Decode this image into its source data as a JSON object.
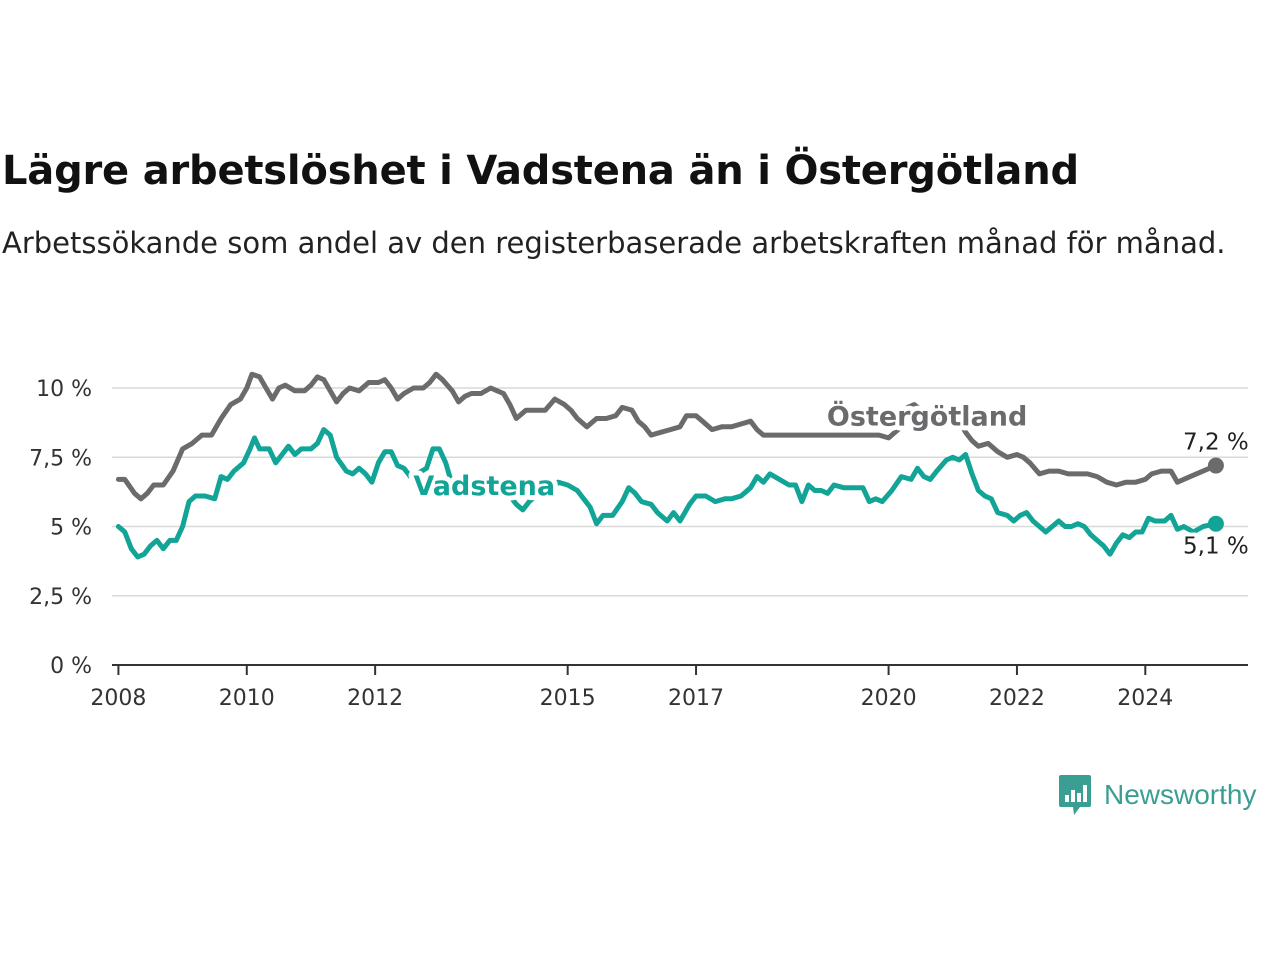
{
  "header": {
    "title": "Lägre arbetslöshet i Vadstena än i Östergötland",
    "subtitle": "Arbetssökande som andel av den registerbaserade arbetskraften månad för månad."
  },
  "brand": {
    "name": "Newsworthy",
    "icon": "newsworthy-logo-icon",
    "color": "#3a9e92"
  },
  "chart_data": {
    "type": "line",
    "xlabel": "",
    "ylabel": "",
    "ylim": [
      0,
      10.8
    ],
    "xlim": [
      2007.9,
      2025.6
    ],
    "y_ticks": [
      {
        "value": 0,
        "label": "0 %"
      },
      {
        "value": 2.5,
        "label": "2,5 %"
      },
      {
        "value": 5,
        "label": "5 %"
      },
      {
        "value": 7.5,
        "label": "7,5 %"
      },
      {
        "value": 10,
        "label": "10 %"
      }
    ],
    "x_ticks": [
      {
        "value": 2008,
        "label": "2008"
      },
      {
        "value": 2010,
        "label": "2010"
      },
      {
        "value": 2012,
        "label": "2012"
      },
      {
        "value": 2015,
        "label": "2015"
      },
      {
        "value": 2017,
        "label": "2017"
      },
      {
        "value": 2020,
        "label": "2020"
      },
      {
        "value": 2022,
        "label": "2022"
      },
      {
        "value": 2024,
        "label": "2024"
      }
    ],
    "grid": true,
    "series": [
      {
        "name": "Östergötland",
        "color": "#6b6b6e",
        "label_at": 2020.6,
        "end_label": "7,2 %",
        "points": [
          [
            2008.0,
            6.7
          ],
          [
            2008.1,
            6.7
          ],
          [
            2008.25,
            6.2
          ],
          [
            2008.35,
            6.0
          ],
          [
            2008.45,
            6.2
          ],
          [
            2008.55,
            6.5
          ],
          [
            2008.7,
            6.5
          ],
          [
            2008.85,
            7.0
          ],
          [
            2009.0,
            7.8
          ],
          [
            2009.15,
            8.0
          ],
          [
            2009.3,
            8.3
          ],
          [
            2009.45,
            8.3
          ],
          [
            2009.6,
            8.9
          ],
          [
            2009.75,
            9.4
          ],
          [
            2009.9,
            9.6
          ],
          [
            2010.0,
            10.0
          ],
          [
            2010.08,
            10.5
          ],
          [
            2010.2,
            10.4
          ],
          [
            2010.3,
            10.0
          ],
          [
            2010.4,
            9.6
          ],
          [
            2010.5,
            10.0
          ],
          [
            2010.6,
            10.1
          ],
          [
            2010.75,
            9.9
          ],
          [
            2010.9,
            9.9
          ],
          [
            2011.0,
            10.1
          ],
          [
            2011.1,
            10.4
          ],
          [
            2011.2,
            10.3
          ],
          [
            2011.3,
            9.9
          ],
          [
            2011.4,
            9.5
          ],
          [
            2011.5,
            9.8
          ],
          [
            2011.6,
            10.0
          ],
          [
            2011.75,
            9.9
          ],
          [
            2011.9,
            10.2
          ],
          [
            2012.05,
            10.2
          ],
          [
            2012.15,
            10.3
          ],
          [
            2012.25,
            10.0
          ],
          [
            2012.35,
            9.6
          ],
          [
            2012.45,
            9.8
          ],
          [
            2012.6,
            10.0
          ],
          [
            2012.75,
            10.0
          ],
          [
            2012.85,
            10.2
          ],
          [
            2012.95,
            10.5
          ],
          [
            2013.05,
            10.3
          ],
          [
            2013.2,
            9.9
          ],
          [
            2013.3,
            9.5
          ],
          [
            2013.4,
            9.7
          ],
          [
            2013.5,
            9.8
          ],
          [
            2013.65,
            9.8
          ],
          [
            2013.8,
            10.0
          ],
          [
            2013.9,
            9.9
          ],
          [
            2014.0,
            9.8
          ],
          [
            2014.1,
            9.4
          ],
          [
            2014.2,
            8.9
          ],
          [
            2014.35,
            9.2
          ],
          [
            2014.5,
            9.2
          ],
          [
            2014.65,
            9.2
          ],
          [
            2014.8,
            9.6
          ],
          [
            2014.95,
            9.4
          ],
          [
            2015.05,
            9.2
          ],
          [
            2015.15,
            8.9
          ],
          [
            2015.3,
            8.6
          ],
          [
            2015.45,
            8.9
          ],
          [
            2015.6,
            8.9
          ],
          [
            2015.75,
            9.0
          ],
          [
            2015.85,
            9.3
          ],
          [
            2016.0,
            9.2
          ],
          [
            2016.1,
            8.8
          ],
          [
            2016.2,
            8.6
          ],
          [
            2016.3,
            8.3
          ],
          [
            2016.45,
            8.4
          ],
          [
            2016.6,
            8.5
          ],
          [
            2016.75,
            8.6
          ],
          [
            2016.85,
            9.0
          ],
          [
            2017.0,
            9.0
          ],
          [
            2017.1,
            8.8
          ],
          [
            2017.25,
            8.5
          ],
          [
            2017.4,
            8.6
          ],
          [
            2017.55,
            8.6
          ],
          [
            2017.7,
            8.7
          ],
          [
            2017.85,
            8.8
          ],
          [
            2017.95,
            8.5
          ],
          [
            2018.05,
            8.3
          ],
          [
            2019.85,
            8.3
          ],
          [
            2020.0,
            8.2
          ],
          [
            2020.1,
            8.4
          ],
          [
            2020.2,
            8.6
          ],
          [
            2020.3,
            9.3
          ],
          [
            2020.4,
            9.4
          ],
          [
            2020.5,
            9.2
          ],
          [
            2020.6,
            9.0
          ],
          [
            2020.7,
            8.8
          ],
          [
            2020.85,
            8.8
          ],
          [
            2021.0,
            8.9
          ],
          [
            2021.1,
            8.8
          ],
          [
            2021.2,
            8.4
          ],
          [
            2021.3,
            8.1
          ],
          [
            2021.4,
            7.9
          ],
          [
            2021.55,
            8.0
          ],
          [
            2021.7,
            7.7
          ],
          [
            2021.85,
            7.5
          ],
          [
            2022.0,
            7.6
          ],
          [
            2022.1,
            7.5
          ],
          [
            2022.2,
            7.3
          ],
          [
            2022.35,
            6.9
          ],
          [
            2022.5,
            7.0
          ],
          [
            2022.65,
            7.0
          ],
          [
            2022.8,
            6.9
          ],
          [
            2022.95,
            6.9
          ],
          [
            2023.1,
            6.9
          ],
          [
            2023.25,
            6.8
          ],
          [
            2023.4,
            6.6
          ],
          [
            2023.55,
            6.5
          ],
          [
            2023.7,
            6.6
          ],
          [
            2023.85,
            6.6
          ],
          [
            2024.0,
            6.7
          ],
          [
            2024.1,
            6.9
          ],
          [
            2024.25,
            7.0
          ],
          [
            2024.4,
            7.0
          ],
          [
            2024.5,
            6.6
          ],
          [
            2024.7,
            6.8
          ],
          [
            2024.9,
            7.0
          ],
          [
            2025.1,
            7.2
          ]
        ]
      },
      {
        "name": "Vadstena",
        "color": "#12a496",
        "label_at": 2013.7,
        "end_label": "5,1 %",
        "points": [
          [
            2008.0,
            5.0
          ],
          [
            2008.1,
            4.8
          ],
          [
            2008.2,
            4.2
          ],
          [
            2008.3,
            3.9
          ],
          [
            2008.4,
            4.0
          ],
          [
            2008.5,
            4.3
          ],
          [
            2008.6,
            4.5
          ],
          [
            2008.7,
            4.2
          ],
          [
            2008.8,
            4.5
          ],
          [
            2008.9,
            4.5
          ],
          [
            2009.0,
            5.0
          ],
          [
            2009.1,
            5.9
          ],
          [
            2009.2,
            6.1
          ],
          [
            2009.35,
            6.1
          ],
          [
            2009.5,
            6.0
          ],
          [
            2009.6,
            6.8
          ],
          [
            2009.7,
            6.7
          ],
          [
            2009.8,
            7.0
          ],
          [
            2009.95,
            7.3
          ],
          [
            2010.05,
            7.8
          ],
          [
            2010.12,
            8.2
          ],
          [
            2010.2,
            7.8
          ],
          [
            2010.35,
            7.8
          ],
          [
            2010.45,
            7.3
          ],
          [
            2010.55,
            7.6
          ],
          [
            2010.65,
            7.9
          ],
          [
            2010.75,
            7.6
          ],
          [
            2010.85,
            7.8
          ],
          [
            2011.0,
            7.8
          ],
          [
            2011.1,
            8.0
          ],
          [
            2011.2,
            8.5
          ],
          [
            2011.3,
            8.3
          ],
          [
            2011.4,
            7.5
          ],
          [
            2011.55,
            7.0
          ],
          [
            2011.65,
            6.9
          ],
          [
            2011.75,
            7.1
          ],
          [
            2011.85,
            6.9
          ],
          [
            2011.95,
            6.6
          ],
          [
            2012.05,
            7.3
          ],
          [
            2012.15,
            7.7
          ],
          [
            2012.25,
            7.7
          ],
          [
            2012.35,
            7.2
          ],
          [
            2012.45,
            7.1
          ],
          [
            2012.55,
            6.8
          ],
          [
            2012.65,
            6.9
          ],
          [
            2012.8,
            7.1
          ],
          [
            2012.9,
            7.8
          ],
          [
            2013.0,
            7.8
          ],
          [
            2013.1,
            7.3
          ],
          [
            2013.2,
            6.5
          ],
          [
            2013.3,
            6.1
          ],
          [
            2013.4,
            6.3
          ],
          [
            2013.55,
            6.4
          ],
          [
            2013.7,
            6.5
          ],
          [
            2013.85,
            6.5
          ],
          [
            2014.0,
            6.4
          ],
          [
            2014.1,
            6.1
          ],
          [
            2014.2,
            5.8
          ],
          [
            2014.3,
            5.6
          ],
          [
            2014.4,
            5.9
          ],
          [
            2014.55,
            6.2
          ],
          [
            2014.7,
            6.2
          ],
          [
            2014.85,
            6.6
          ],
          [
            2015.0,
            6.5
          ],
          [
            2015.15,
            6.3
          ],
          [
            2015.25,
            6.0
          ],
          [
            2015.35,
            5.7
          ],
          [
            2015.45,
            5.1
          ],
          [
            2015.55,
            5.4
          ],
          [
            2015.7,
            5.4
          ],
          [
            2015.85,
            5.9
          ],
          [
            2015.95,
            6.4
          ],
          [
            2016.05,
            6.2
          ],
          [
            2016.15,
            5.9
          ],
          [
            2016.3,
            5.8
          ],
          [
            2016.4,
            5.5
          ],
          [
            2016.55,
            5.2
          ],
          [
            2016.65,
            5.5
          ],
          [
            2016.75,
            5.2
          ],
          [
            2016.9,
            5.8
          ],
          [
            2017.0,
            6.1
          ],
          [
            2017.15,
            6.1
          ],
          [
            2017.3,
            5.9
          ],
          [
            2017.45,
            6.0
          ],
          [
            2017.55,
            6.0
          ],
          [
            2017.7,
            6.1
          ],
          [
            2017.85,
            6.4
          ],
          [
            2017.95,
            6.8
          ],
          [
            2018.05,
            6.6
          ],
          [
            2018.15,
            6.9
          ],
          [
            2018.3,
            6.7
          ],
          [
            2018.45,
            6.5
          ],
          [
            2018.55,
            6.5
          ],
          [
            2018.65,
            5.9
          ],
          [
            2018.75,
            6.5
          ],
          [
            2018.85,
            6.3
          ],
          [
            2018.95,
            6.3
          ],
          [
            2019.05,
            6.2
          ],
          [
            2019.15,
            6.5
          ],
          [
            2019.3,
            6.4
          ],
          [
            2019.45,
            6.4
          ],
          [
            2019.6,
            6.4
          ],
          [
            2019.7,
            5.9
          ],
          [
            2019.8,
            6.0
          ],
          [
            2019.9,
            5.9
          ],
          [
            2020.05,
            6.3
          ],
          [
            2020.2,
            6.8
          ],
          [
            2020.35,
            6.7
          ],
          [
            2020.45,
            7.1
          ],
          [
            2020.55,
            6.8
          ],
          [
            2020.65,
            6.7
          ],
          [
            2020.75,
            7.0
          ],
          [
            2020.9,
            7.4
          ],
          [
            2021.0,
            7.5
          ],
          [
            2021.1,
            7.4
          ],
          [
            2021.2,
            7.6
          ],
          [
            2021.3,
            6.9
          ],
          [
            2021.4,
            6.3
          ],
          [
            2021.5,
            6.1
          ],
          [
            2021.6,
            6.0
          ],
          [
            2021.7,
            5.5
          ],
          [
            2021.85,
            5.4
          ],
          [
            2021.95,
            5.2
          ],
          [
            2022.05,
            5.4
          ],
          [
            2022.15,
            5.5
          ],
          [
            2022.25,
            5.2
          ],
          [
            2022.35,
            5.0
          ],
          [
            2022.45,
            4.8
          ],
          [
            2022.55,
            5.0
          ],
          [
            2022.65,
            5.2
          ],
          [
            2022.75,
            5.0
          ],
          [
            2022.85,
            5.0
          ],
          [
            2022.95,
            5.1
          ],
          [
            2023.05,
            5.0
          ],
          [
            2023.15,
            4.7
          ],
          [
            2023.25,
            4.5
          ],
          [
            2023.35,
            4.3
          ],
          [
            2023.45,
            4.0
          ],
          [
            2023.55,
            4.4
          ],
          [
            2023.65,
            4.7
          ],
          [
            2023.75,
            4.6
          ],
          [
            2023.85,
            4.8
          ],
          [
            2023.95,
            4.8
          ],
          [
            2024.05,
            5.3
          ],
          [
            2024.15,
            5.2
          ],
          [
            2024.3,
            5.2
          ],
          [
            2024.4,
            5.4
          ],
          [
            2024.5,
            4.9
          ],
          [
            2024.6,
            5.0
          ],
          [
            2024.75,
            4.8
          ],
          [
            2024.9,
            5.0
          ],
          [
            2025.1,
            5.1
          ]
        ]
      }
    ]
  }
}
